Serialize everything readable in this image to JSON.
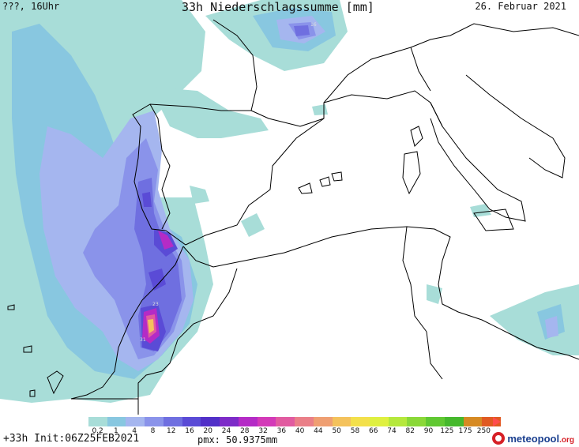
{
  "header": {
    "left": "???, 16Uhr",
    "title": "33h Niederschlagssumme [mm]",
    "date": "26. Februar 2021"
  },
  "footer": {
    "run_info": "+33h Init:06Z25FEB2021",
    "pmx": "pmx: 50.9375mm"
  },
  "logo": {
    "name": "meteopool",
    "tld": ".org",
    "brand_color": "#1a3f8f",
    "accent_color": "#d61f26"
  },
  "legend": {
    "labels": [
      "0.2",
      "1",
      "4",
      "8",
      "12",
      "16",
      "20",
      "24",
      "28",
      "32",
      "36",
      "40",
      "44",
      "50",
      "58",
      "66",
      "74",
      "82",
      "90",
      "125",
      "175",
      "250"
    ],
    "colors": [
      "#a8ddd8",
      "#88c7e0",
      "#a5b6ef",
      "#8a93ea",
      "#6f6fe0",
      "#5a4bd6",
      "#5130c8",
      "#7d2bc8",
      "#b42bc6",
      "#d33ab8",
      "#e15ba0",
      "#ea7f88",
      "#ef9f72",
      "#f4c25c",
      "#f3e04b",
      "#dff040",
      "#b5e83c",
      "#8ad838",
      "#60c832",
      "#45b82c",
      "#d68a23",
      "#e05a22"
    ]
  },
  "map_labels": {
    "bay_of_biscay_max": "16",
    "morocco_a": "23",
    "morocco_b": "31"
  }
}
